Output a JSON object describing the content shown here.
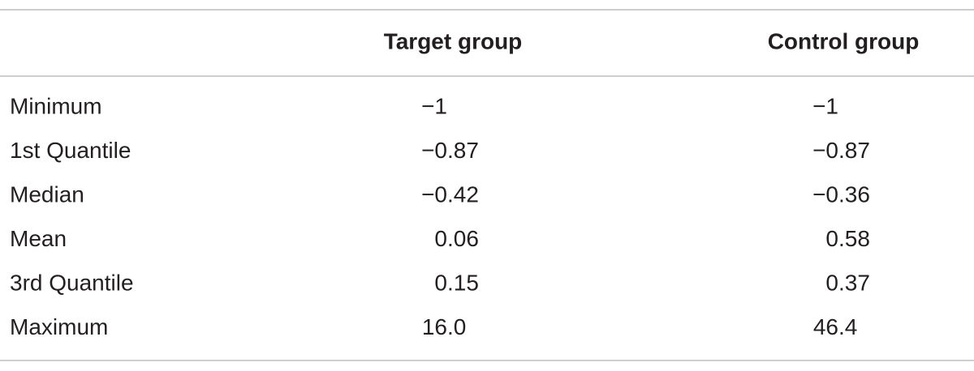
{
  "table": {
    "header": [
      "",
      "Target group",
      "Control group"
    ],
    "rows": [
      [
        "Minimum",
        "−1",
        "−1"
      ],
      [
        "1st Quantile",
        "−0.87",
        "−0.87"
      ],
      [
        "Median",
        "−0.42",
        "−0.36"
      ],
      [
        "Mean",
        "0.06",
        "0.58"
      ],
      [
        "3rd Quantile",
        "0.15",
        "0.37"
      ],
      [
        "Maximum",
        "16.0",
        "46.4"
      ]
    ]
  }
}
